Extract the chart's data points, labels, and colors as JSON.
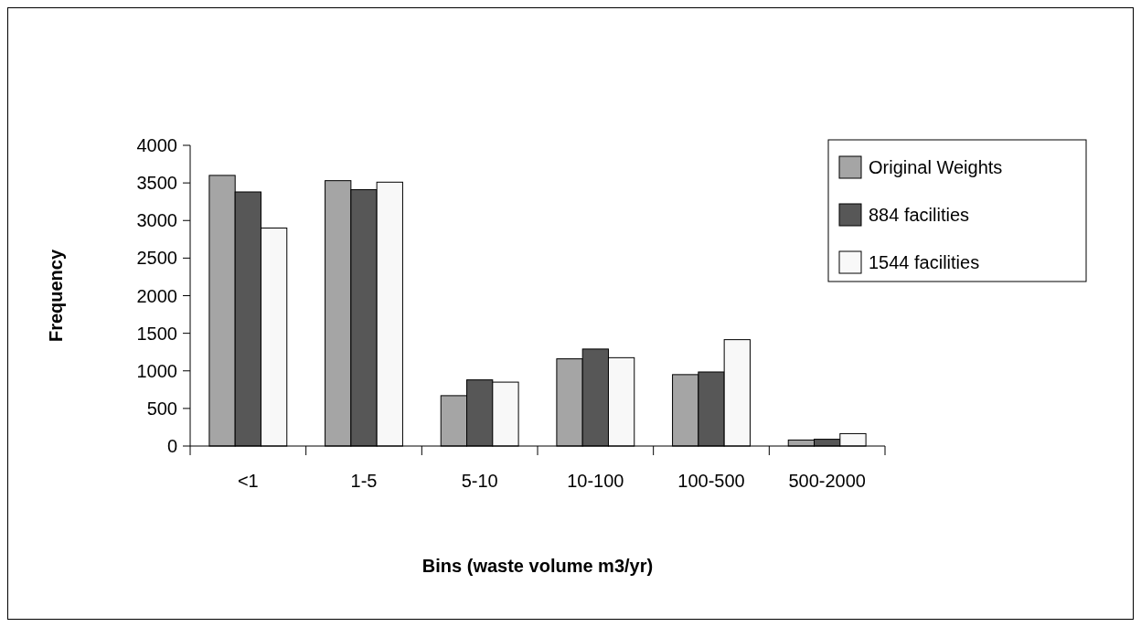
{
  "chart_data": {
    "type": "bar",
    "xlabel": "Bins (waste volume m3/yr)",
    "ylabel": "Frequency",
    "categories": [
      "<1",
      "1-5",
      "5-10",
      "10-100",
      "100-500",
      "500-2000"
    ],
    "series": [
      {
        "name": "Original Weights",
        "color": "#a5a5a5",
        "values": [
          3600,
          3530,
          670,
          1160,
          950,
          80
        ]
      },
      {
        "name": "884 facilities",
        "color": "#575757",
        "values": [
          3380,
          3410,
          880,
          1290,
          985,
          90
        ]
      },
      {
        "name": "1544 facilities",
        "color": "#f8f8f8",
        "values": [
          2900,
          3510,
          850,
          1175,
          1415,
          165
        ]
      }
    ],
    "ylim": [
      0,
      4000
    ],
    "yticks": [
      0,
      500,
      1000,
      1500,
      2000,
      2500,
      3000,
      3500,
      4000
    ],
    "grid": false,
    "legend": "top right"
  }
}
